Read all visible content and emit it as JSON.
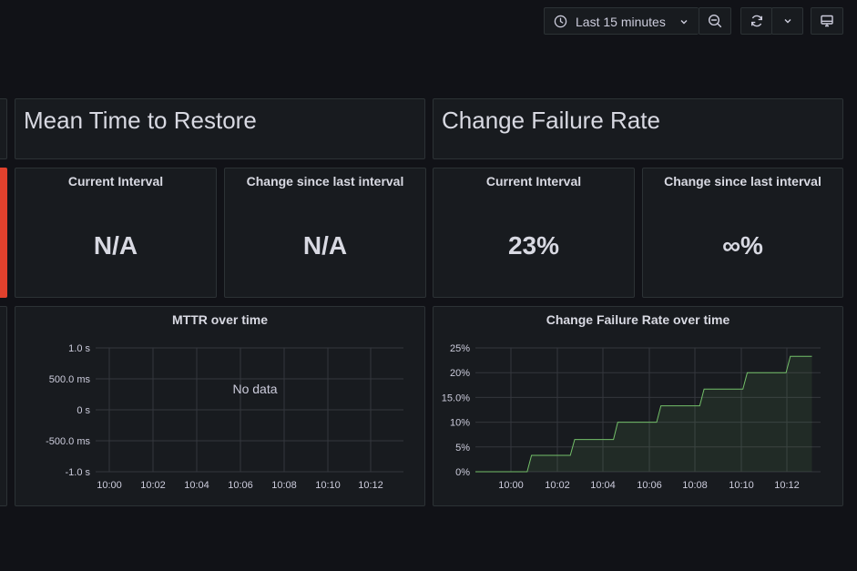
{
  "toolbar": {
    "time_range_label": "Last 15 minutes",
    "icons": [
      "clock-icon",
      "chevron-down-icon",
      "zoom-out-icon",
      "refresh-icon",
      "chevron-down-icon",
      "tv-mode-icon"
    ]
  },
  "rows": {
    "mttr": {
      "title": "Mean Time to Restore"
    },
    "cfr": {
      "title": "Change Failure Rate"
    }
  },
  "stats": {
    "mttr_current": {
      "title": "Current Interval",
      "value": "N/A"
    },
    "mttr_change": {
      "title": "Change since last interval",
      "value": "N/A"
    },
    "cfr_current": {
      "title": "Current Interval",
      "value": "23%"
    },
    "cfr_change": {
      "title": "Change since last interval",
      "value": "∞%"
    }
  },
  "status_color": "#e0412d",
  "series_color": "#73bf69",
  "chart_data": [
    {
      "type": "line",
      "title": "MTTR over time",
      "x_ticks": [
        "10:00",
        "10:02",
        "10:04",
        "10:06",
        "10:08",
        "10:10",
        "10:12"
      ],
      "y_ticks": [
        "1.0 s",
        "500.0 ms",
        "0 s",
        "-500.0 ms",
        "-1.0 s"
      ],
      "ylim": [
        -1.0,
        1.0
      ],
      "grid": true,
      "no_data_text": "No data",
      "series": []
    },
    {
      "type": "area",
      "title": "Change Failure Rate over time",
      "x_ticks": [
        "10:00",
        "10:02",
        "10:04",
        "10:06",
        "10:08",
        "10:10",
        "10:12"
      ],
      "y_ticks": [
        "25%",
        "20%",
        "15.0%",
        "10%",
        "5%",
        "0%"
      ],
      "ylim": [
        0,
        25
      ],
      "grid": true,
      "xlim_minutes": [
        9.6,
        13.6
      ],
      "series": [
        {
          "x_minutes": [
            9.6,
            9.9,
            10.0,
            10.2,
            10.25,
            10.45,
            10.5,
            10.7,
            10.75,
            10.95,
            11.0,
            11.2,
            11.25,
            11.45,
            11.5,
            11.7,
            11.75,
            11.95,
            12.0,
            12.2,
            12.25,
            12.45,
            12.5,
            12.7,
            12.75,
            12.95,
            13.0,
            13.2,
            13.25,
            13.5
          ],
          "values": [
            0,
            0,
            0,
            0,
            3.3,
            3.3,
            3.3,
            3.3,
            6.5,
            6.5,
            6.5,
            6.5,
            10,
            10,
            10,
            10,
            13.3,
            13.3,
            13.3,
            13.3,
            16.7,
            16.7,
            16.7,
            16.7,
            20,
            20,
            20,
            20,
            23.3,
            23.3
          ]
        }
      ]
    }
  ]
}
